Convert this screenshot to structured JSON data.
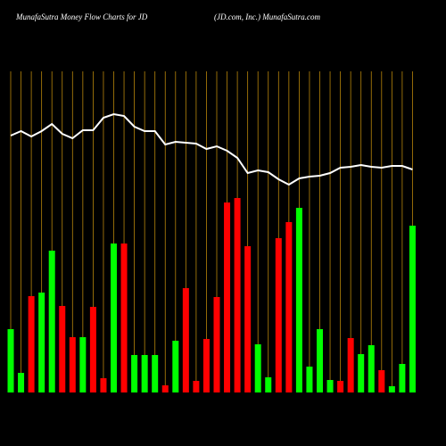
{
  "chart_data": {
    "type": "bar",
    "title": "MunafaSutra  Money Flow  Charts for JD",
    "subtitle": "(JD.com, Inc.) MunafaSutra.com",
    "categories": [
      null,
      null,
      null,
      null,
      null,
      null,
      null,
      null,
      null,
      null,
      null,
      null,
      null,
      null,
      null,
      null,
      null,
      null,
      null,
      null,
      null,
      null,
      null,
      null,
      null,
      null,
      null,
      null,
      null,
      null,
      null,
      null,
      null,
      null,
      null,
      null,
      null,
      null,
      null,
      null
    ],
    "series": [
      {
        "type": "bar",
        "values": [
          71,
          22,
          108,
          112,
          159,
          97,
          62,
          62,
          96,
          16,
          167,
          167,
          42,
          42,
          42,
          8,
          58,
          117,
          13,
          60,
          107,
          213,
          218,
          164,
          54,
          17,
          173,
          191,
          207,
          29,
          71,
          14,
          13,
          61,
          43,
          53,
          25,
          7,
          32,
          187
        ],
        "colors": [
          "#00ff00",
          "#00ff00",
          "#ff0000",
          "#00ff00",
          "#00ff00",
          "#ff0000",
          "#ff0000",
          "#00ff00",
          "#ff0000",
          "#ff0000",
          "#00ff00",
          "#ff0000",
          "#00ff00",
          "#00ff00",
          "#00ff00",
          "#ff0000",
          "#00ff00",
          "#ff0000",
          "#ff0000",
          "#ff0000",
          "#ff0000",
          "#ff0000",
          "#ff0000",
          "#ff0000",
          "#00ff00",
          "#00ff00",
          "#ff0000",
          "#ff0000",
          "#00ff00",
          "#00ff00",
          "#00ff00",
          "#00ff00",
          "#ff0000",
          "#ff0000",
          "#00ff00",
          "#00ff00",
          "#ff0000",
          "#00ff00",
          "#00ff00",
          "#00ff00"
        ]
      },
      {
        "type": "line",
        "color": "#ffffff",
        "values": [
          288,
          293,
          287,
          293,
          301,
          290,
          285,
          294,
          294,
          308,
          312,
          310,
          298,
          293,
          293,
          278,
          281,
          280,
          279,
          273,
          276,
          271,
          263,
          246,
          249,
          247,
          239,
          233,
          240,
          242,
          243,
          246,
          252,
          253,
          255,
          253,
          252,
          254,
          254,
          250
        ]
      }
    ],
    "ylim": [
      0,
      360
    ],
    "grid": true,
    "grid_color": "#b8860b"
  }
}
